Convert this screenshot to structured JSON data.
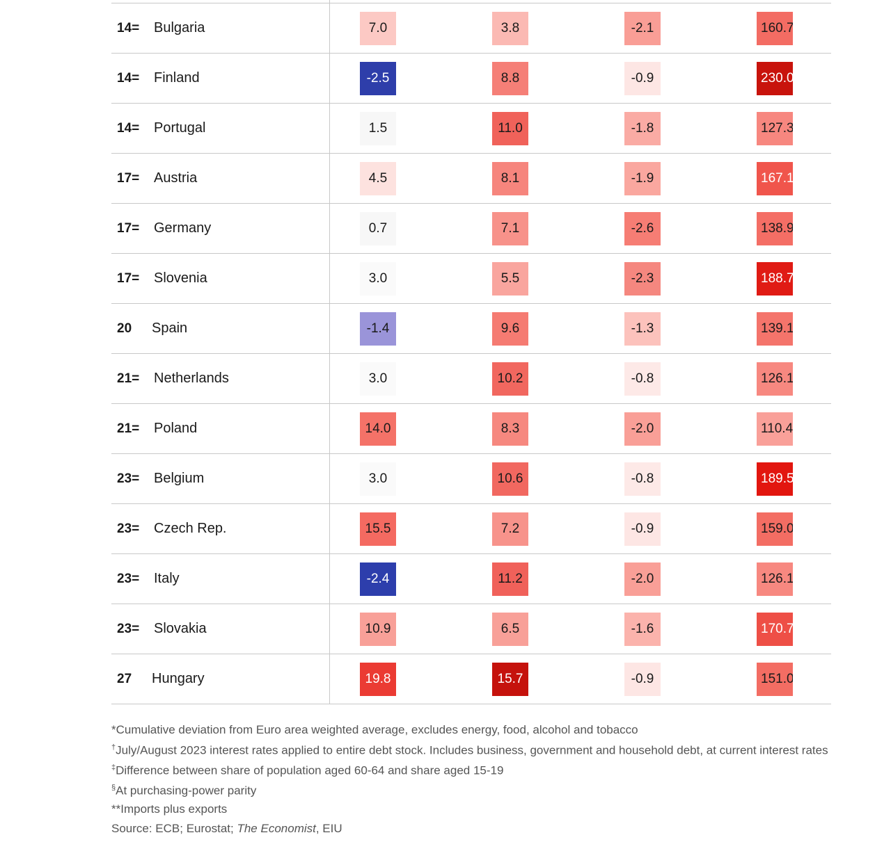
{
  "chart_data": {
    "type": "table",
    "rows": [
      {
        "rank": "14=",
        "country": "Bulgaria",
        "values": [
          "7.0",
          "3.8",
          "-2.1",
          "160.7"
        ],
        "colors": [
          "#fcc9c4",
          "#fbb9b3",
          "#f99e96",
          "#f36c63"
        ]
      },
      {
        "rank": "14=",
        "country": "Finland",
        "values": [
          "-2.5",
          "8.8",
          "-0.9",
          "230.0"
        ],
        "colors": [
          "#2e3eaa",
          "#f57f77",
          "#fde6e4",
          "#c8130c"
        ]
      },
      {
        "rank": "14=",
        "country": "Portugal",
        "values": [
          "1.5",
          "11.0",
          "-1.8",
          "127.3"
        ],
        "colors": [
          "#f7f7f7",
          "#f0625a",
          "#faaba4",
          "#f7877f"
        ]
      },
      {
        "rank": "17=",
        "country": "Austria",
        "values": [
          "4.5",
          "8.1",
          "-1.9",
          "167.1"
        ],
        "colors": [
          "#fde2df",
          "#f6857d",
          "#faa79f",
          "#f0554c"
        ]
      },
      {
        "rank": "17=",
        "country": "Germany",
        "values": [
          "0.7",
          "7.1",
          "-2.6",
          "138.9"
        ],
        "colors": [
          "#f7f7f7",
          "#f7928a",
          "#f67d74",
          "#f46e65"
        ]
      },
      {
        "rank": "17=",
        "country": "Slovenia",
        "values": [
          "3.0",
          "5.5",
          "-2.3",
          "188.7"
        ],
        "colors": [
          "#fafafa",
          "#f9a59e",
          "#f5877f",
          "#e01b14"
        ]
      },
      {
        "rank": "20",
        "country": "Spain",
        "values": [
          "-1.4",
          "9.6",
          "-1.3",
          "139.1"
        ],
        "colors": [
          "#9a94d9",
          "#f57b72",
          "#fcc2bc",
          "#f4746b"
        ]
      },
      {
        "rank": "21=",
        "country": "Netherlands",
        "values": [
          "3.0",
          "10.2",
          "-0.8",
          "126.1"
        ],
        "colors": [
          "#fafafa",
          "#f1675f",
          "#fde9e7",
          "#f78880"
        ]
      },
      {
        "rank": "21=",
        "country": "Poland",
        "values": [
          "14.0",
          "8.3",
          "-2.0",
          "110.4"
        ],
        "colors": [
          "#f47268",
          "#f6887f",
          "#f99f97",
          "#f9a099"
        ]
      },
      {
        "rank": "23=",
        "country": "Belgium",
        "values": [
          "3.0",
          "10.6",
          "-0.8",
          "189.5"
        ],
        "colors": [
          "#fafafa",
          "#f16860",
          "#fde9e7",
          "#e2160f"
        ]
      },
      {
        "rank": "23=",
        "country": "Czech Rep.",
        "values": [
          "15.5",
          "7.2",
          "-0.9",
          "159.0"
        ],
        "colors": [
          "#f46a61",
          "#f7938b",
          "#fde6e4",
          "#f36d63"
        ]
      },
      {
        "rank": "23=",
        "country": "Italy",
        "values": [
          "-2.4",
          "11.2",
          "-2.0",
          "126.1"
        ],
        "colors": [
          "#2d3eac",
          "#f0615a",
          "#f99f97",
          "#f78880"
        ]
      },
      {
        "rank": "23=",
        "country": "Slovakia",
        "values": [
          "10.9",
          "6.5",
          "-1.6",
          "170.7"
        ],
        "colors": [
          "#f8a098",
          "#f8a098",
          "#fbb3ac",
          "#ee4f46"
        ]
      },
      {
        "rank": "27",
        "country": "Hungary",
        "values": [
          "19.8",
          "15.7",
          "-0.9",
          "151.0"
        ],
        "colors": [
          "#eb3b33",
          "#c5120c",
          "#fde6e4",
          "#f36d63"
        ]
      }
    ]
  },
  "footnotes": [
    {
      "mark": "",
      "text": "*Cumulative deviation from Euro area weighted average, excludes energy, food, alcohol and tobacco"
    },
    {
      "mark": "†",
      "text": "July/August 2023 interest rates applied to entire debt stock. Includes business, government and household debt, at current interest rates"
    },
    {
      "mark": "‡",
      "text": "Difference between share of population aged 60-64 and share aged 15-19"
    },
    {
      "mark": "§",
      "text": "At purchasing-power parity"
    },
    {
      "mark": "",
      "text": "**Imports plus exports"
    }
  ],
  "source": {
    "prefix": "Source: ECB; Eurostat; ",
    "italic": "The Economist",
    "suffix": ", EIU"
  }
}
